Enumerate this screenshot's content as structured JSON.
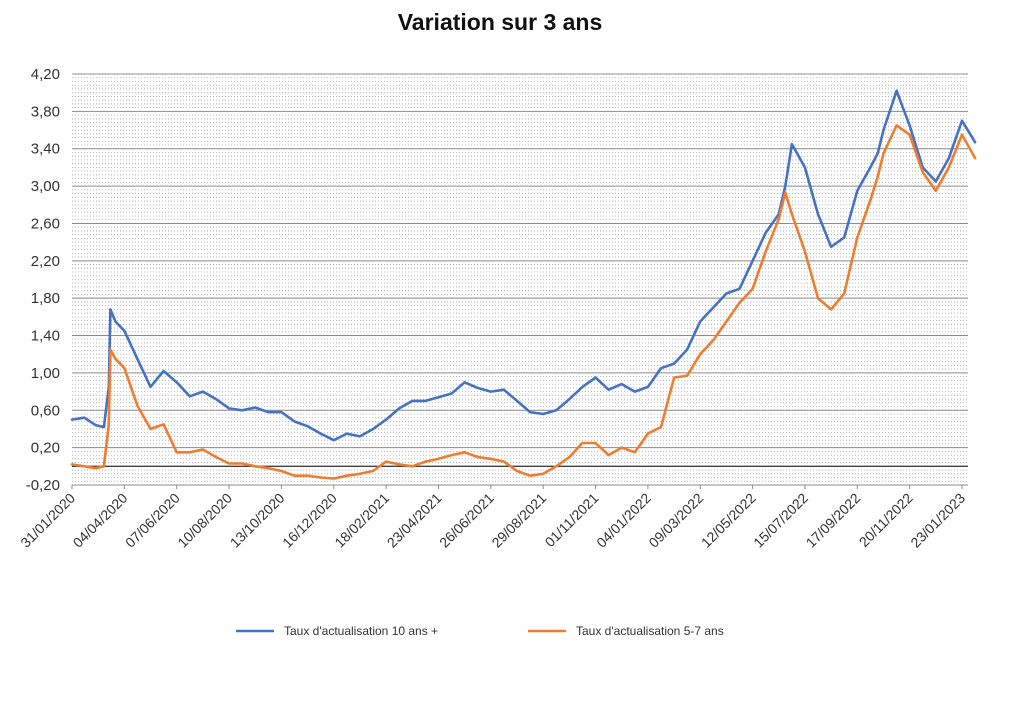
{
  "chart_data": {
    "type": "line",
    "title": "Variation sur 3 ans",
    "xlabel": "",
    "ylabel": "",
    "ylim": [
      -0.2,
      4.2
    ],
    "y_ticks": [
      "-0,20",
      "0,20",
      "0,60",
      "1,00",
      "1,40",
      "1,80",
      "2,20",
      "2,60",
      "3,00",
      "3,40",
      "3,80",
      "4,20"
    ],
    "x_ticks": [
      "31/01/2020",
      "04/04/2020",
      "07/06/2020",
      "10/08/2020",
      "13/10/2020",
      "16/12/2020",
      "18/02/2021",
      "23/04/2021",
      "26/06/2021",
      "29/08/2021",
      "01/11/2021",
      "04/01/2022",
      "09/03/2022",
      "12/05/2022",
      "15/07/2022",
      "17/09/2022",
      "20/11/2022",
      "23/01/2023"
    ],
    "grid": true,
    "legend": "bottom",
    "x": [
      "31/01/2020",
      "15/02/2020",
      "29/02/2020",
      "10/03/2020",
      "16/03/2020",
      "18/03/2020",
      "24/03/2020",
      "04/04/2020",
      "20/04/2020",
      "06/05/2020",
      "22/05/2020",
      "07/06/2020",
      "23/06/2020",
      "09/07/2020",
      "25/07/2020",
      "10/08/2020",
      "26/08/2020",
      "11/09/2020",
      "27/09/2020",
      "13/10/2020",
      "29/10/2020",
      "14/11/2020",
      "30/11/2020",
      "16/12/2020",
      "01/01/2021",
      "17/01/2021",
      "02/02/2021",
      "18/02/2021",
      "06/03/2021",
      "22/03/2021",
      "07/04/2021",
      "23/04/2021",
      "09/05/2021",
      "25/05/2021",
      "10/06/2021",
      "26/06/2021",
      "12/07/2021",
      "28/07/2021",
      "13/08/2021",
      "29/08/2021",
      "14/09/2021",
      "30/09/2021",
      "16/10/2021",
      "01/11/2021",
      "17/11/2021",
      "03/12/2021",
      "19/12/2021",
      "04/01/2022",
      "20/01/2022",
      "05/02/2022",
      "21/02/2022",
      "09/03/2022",
      "25/03/2022",
      "10/04/2022",
      "26/04/2022",
      "12/05/2022",
      "28/05/2022",
      "13/06/2022",
      "21/06/2022",
      "29/06/2022",
      "15/07/2022",
      "31/07/2022",
      "16/08/2022",
      "01/09/2022",
      "17/09/2022",
      "03/10/2022",
      "12/10/2022",
      "19/10/2022",
      "04/11/2022",
      "20/11/2022",
      "06/12/2022",
      "22/12/2022",
      "07/01/2023",
      "23/01/2023",
      "08/02/2023"
    ],
    "series": [
      {
        "name": "Taux d'actualisation 10 ans +",
        "color": "#4472C4",
        "values": [
          0.5,
          0.52,
          0.44,
          0.42,
          0.85,
          1.68,
          1.55,
          1.45,
          1.15,
          0.85,
          1.02,
          0.9,
          0.75,
          0.8,
          0.72,
          0.62,
          0.6,
          0.63,
          0.58,
          0.58,
          0.48,
          0.43,
          0.35,
          0.28,
          0.35,
          0.32,
          0.4,
          0.5,
          0.62,
          0.7,
          0.7,
          0.74,
          0.78,
          0.9,
          0.84,
          0.8,
          0.82,
          0.7,
          0.58,
          0.56,
          0.6,
          0.72,
          0.85,
          0.95,
          0.82,
          0.88,
          0.8,
          0.85,
          1.05,
          1.1,
          1.25,
          1.55,
          1.7,
          1.85,
          1.9,
          2.2,
          2.5,
          2.7,
          3.0,
          3.45,
          3.2,
          2.7,
          2.35,
          2.45,
          2.95,
          3.2,
          3.35,
          3.6,
          4.02,
          3.65,
          3.2,
          3.05,
          3.3,
          3.7,
          3.47
        ]
      },
      {
        "name": "Taux d'actualisation 5-7 ans",
        "color": "#ED7D31",
        "values": [
          0.02,
          0.0,
          -0.02,
          0.0,
          0.45,
          1.25,
          1.15,
          1.05,
          0.65,
          0.4,
          0.45,
          0.15,
          0.15,
          0.18,
          0.1,
          0.03,
          0.03,
          0.0,
          -0.02,
          -0.05,
          -0.1,
          -0.1,
          -0.12,
          -0.13,
          -0.1,
          -0.08,
          -0.05,
          0.05,
          0.02,
          0.0,
          0.05,
          0.08,
          0.12,
          0.15,
          0.1,
          0.08,
          0.05,
          -0.05,
          -0.1,
          -0.08,
          0.0,
          0.1,
          0.25,
          0.25,
          0.12,
          0.2,
          0.15,
          0.35,
          0.42,
          0.95,
          0.97,
          1.2,
          1.35,
          1.55,
          1.75,
          1.9,
          2.3,
          2.65,
          2.93,
          2.7,
          2.3,
          1.8,
          1.68,
          1.85,
          2.45,
          2.85,
          3.1,
          3.35,
          3.65,
          3.55,
          3.15,
          2.95,
          3.2,
          3.55,
          3.3
        ]
      }
    ]
  }
}
